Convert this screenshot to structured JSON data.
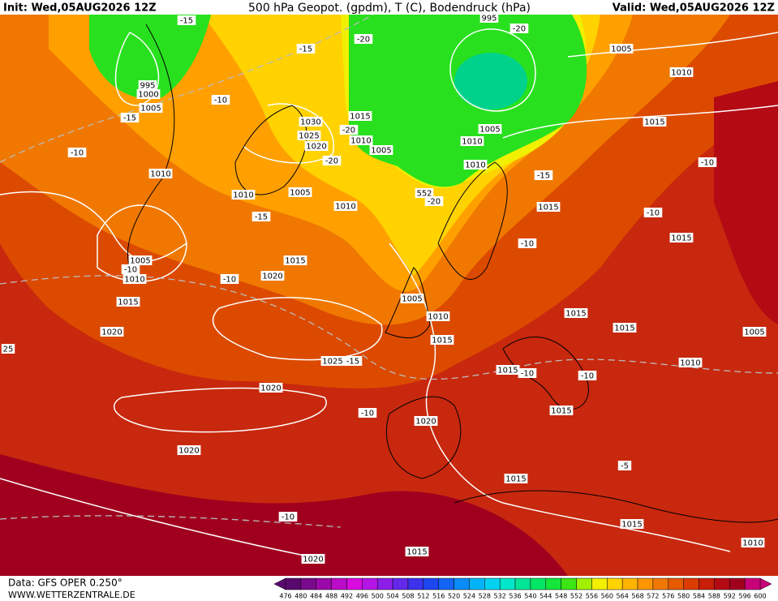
{
  "header": {
    "init": "Init: Wed,05AUG2026 12Z",
    "title": "500 hPa Geopot. (gpdm), T (C), Bodendruck (hPa)",
    "valid": "Valid: Wed,05AUG2026 12Z"
  },
  "footer": {
    "source": "Data: GFS OPER 0.250°",
    "site": "WWW.WETTERZENTRALE.DE"
  },
  "map_labels": [
    "995",
    "-20",
    "1005",
    "1010",
    "-15",
    "-20",
    "-15",
    "995",
    "1000",
    "1005",
    "-15",
    "-10",
    "1030",
    "1015",
    "-20",
    "1025",
    "1010",
    "1020",
    "1005",
    "1005",
    "1010",
    "1015",
    "-10",
    "1010",
    "-20",
    "1010",
    "-15",
    "-10",
    "1010",
    "1005",
    "552",
    "-20",
    "1010",
    "1015",
    "-10",
    "-15",
    "1015",
    "-10",
    "1005",
    "1015",
    "-10",
    "1010",
    "1020",
    "-10",
    "1015",
    "1005",
    "1010",
    "1015",
    "1015",
    "1005",
    "1020",
    "1015",
    "25",
    "1025",
    "-15",
    "1010",
    "1015",
    "-10",
    "-10",
    "1020",
    "-10",
    "1015",
    "1020",
    "1020",
    "-5",
    "1015",
    "1015",
    "-10",
    "1010",
    "1015",
    "1020"
  ],
  "colorbar": {
    "labels": [
      476,
      480,
      484,
      488,
      492,
      496,
      500,
      504,
      508,
      512,
      516,
      520,
      524,
      528,
      532,
      536,
      540,
      544,
      548,
      552,
      556,
      560,
      564,
      568,
      572,
      576,
      580,
      584,
      588,
      592,
      596,
      600
    ],
    "colors": [
      "#5a0a6e",
      "#7a0a8c",
      "#9b0aa8",
      "#bb0ac8",
      "#d80ae0",
      "#b414e6",
      "#8c1ee8",
      "#6428ea",
      "#3c32ec",
      "#1e46f0",
      "#1464f5",
      "#0a8cf8",
      "#00b4fa",
      "#00d2f0",
      "#00e6c8",
      "#00e696",
      "#00e664",
      "#14e63c",
      "#3ce614",
      "#a0f000",
      "#f0f000",
      "#ffd200",
      "#ffb400",
      "#ff9600",
      "#f07800",
      "#e65a00",
      "#dc3c00",
      "#c81e0a",
      "#b40a14",
      "#a0001e",
      "#c8007a"
    ]
  }
}
